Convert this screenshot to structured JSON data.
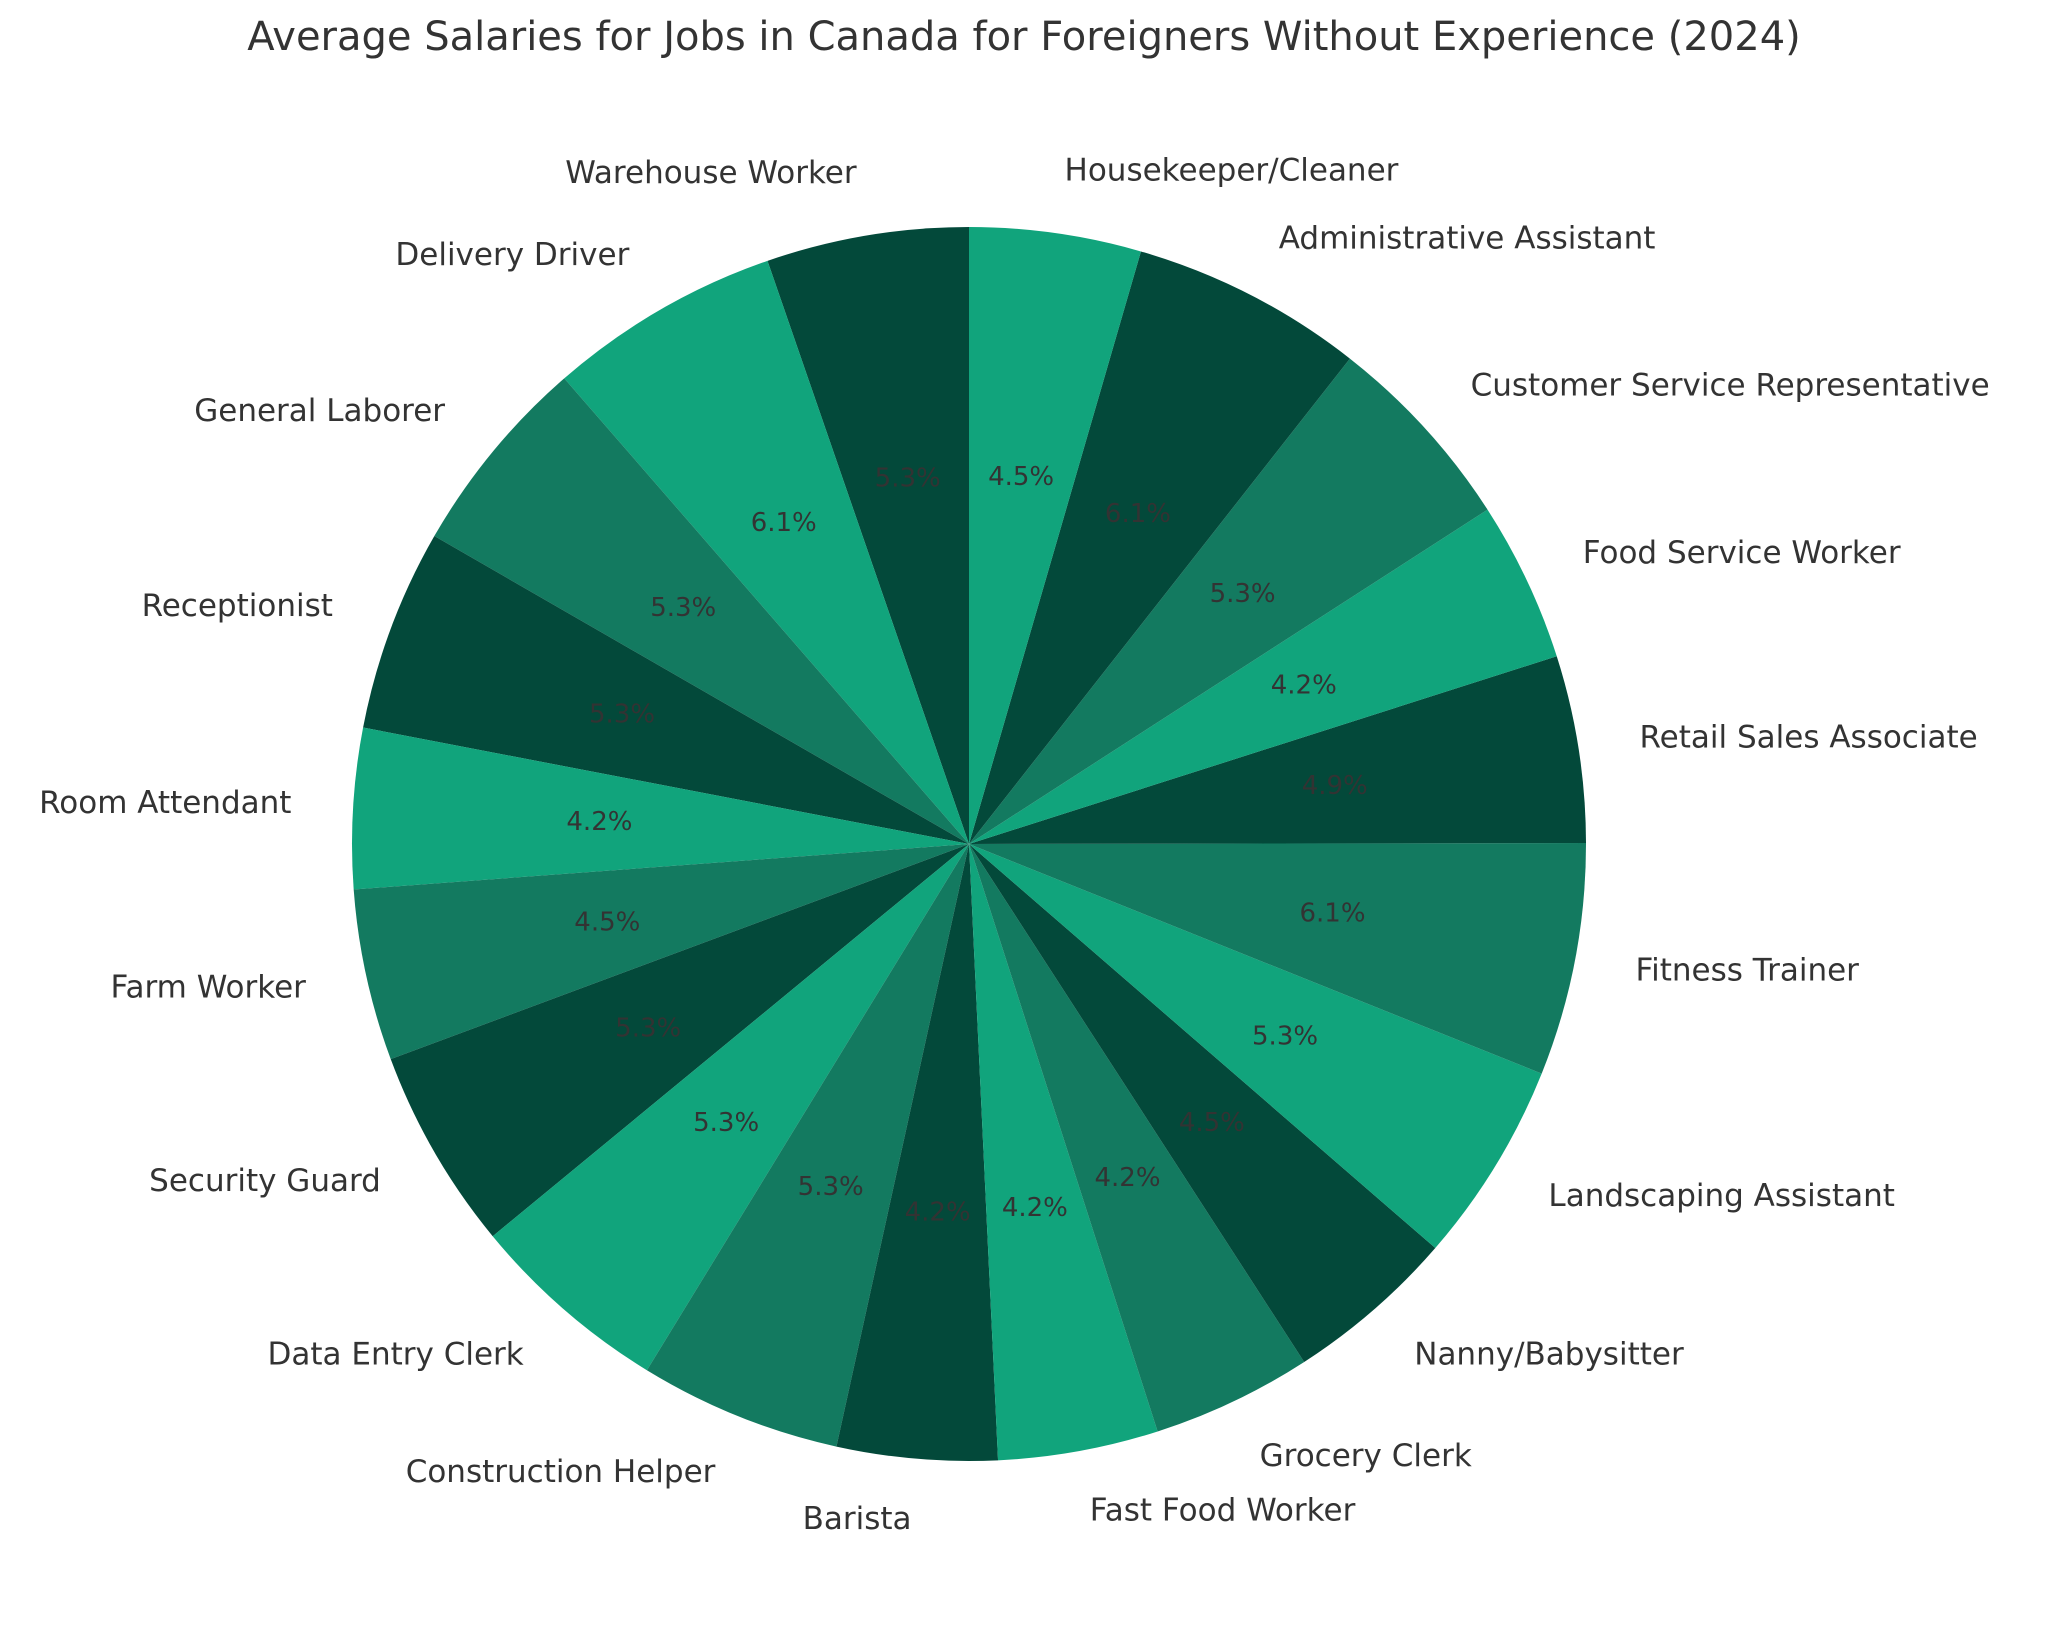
{
  "chart_data": {
    "type": "pie",
    "title": "Average Salaries for Jobs in Canada for Foreigners Without Experience (2024)",
    "categories": [
      "Warehouse Worker",
      "Delivery Driver",
      "General Laborer",
      "Receptionist",
      "Room Attendant",
      "Farm Worker",
      "Security Guard",
      "Data Entry Clerk",
      "Construction Helper",
      "Barista",
      "Fast Food Worker",
      "Grocery Clerk",
      "Nanny/Babysitter",
      "Landscaping Assistant",
      "Fitness Trainer",
      "Retail Sales Associate",
      "Food Service Worker",
      "Customer Service Representative",
      "Administrative Assistant",
      "Housekeeper/Cleaner"
    ],
    "values": [
      5.3,
      6.1,
      5.3,
      5.3,
      4.2,
      4.5,
      5.3,
      5.3,
      5.3,
      4.2,
      4.2,
      4.2,
      4.5,
      5.3,
      6.1,
      4.9,
      4.2,
      5.3,
      6.1,
      4.5
    ],
    "labels": [
      "5.3%",
      "6.1%",
      "5.3%",
      "5.3%",
      "4.2%",
      "4.5%",
      "5.3%",
      "5.3%",
      "5.3%",
      "4.2%",
      "4.2%",
      "4.2%",
      "4.5%",
      "5.3%",
      "6.1%",
      "4.9%",
      "4.2%",
      "5.3%",
      "6.1%",
      "4.5%"
    ],
    "start_angle": "90 degrees (top)",
    "direction": "counterclockwise",
    "colors": [
      "#03493a",
      "#11a47c",
      "#137a60"
    ]
  }
}
